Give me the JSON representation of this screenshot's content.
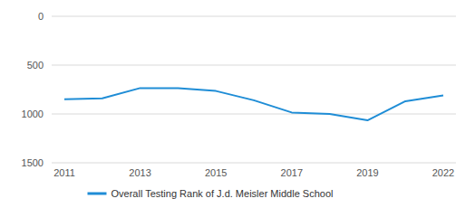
{
  "chart_data": {
    "type": "line",
    "categories": [
      "2011",
      null,
      "2013",
      null,
      "2015",
      null,
      "2017",
      null,
      "2019",
      null,
      "2022"
    ],
    "series": [
      {
        "name": "Overall Testing Rank of J.d. Meisler Middle School",
        "color": "#1f8dd6",
        "values": [
          850,
          840,
          735,
          735,
          765,
          860,
          985,
          1000,
          1065,
          870,
          810
        ]
      }
    ],
    "ylim": [
      1500,
      0
    ],
    "yticks": [
      0,
      500,
      1000,
      1500
    ],
    "grid": true,
    "legend": "bottom"
  }
}
